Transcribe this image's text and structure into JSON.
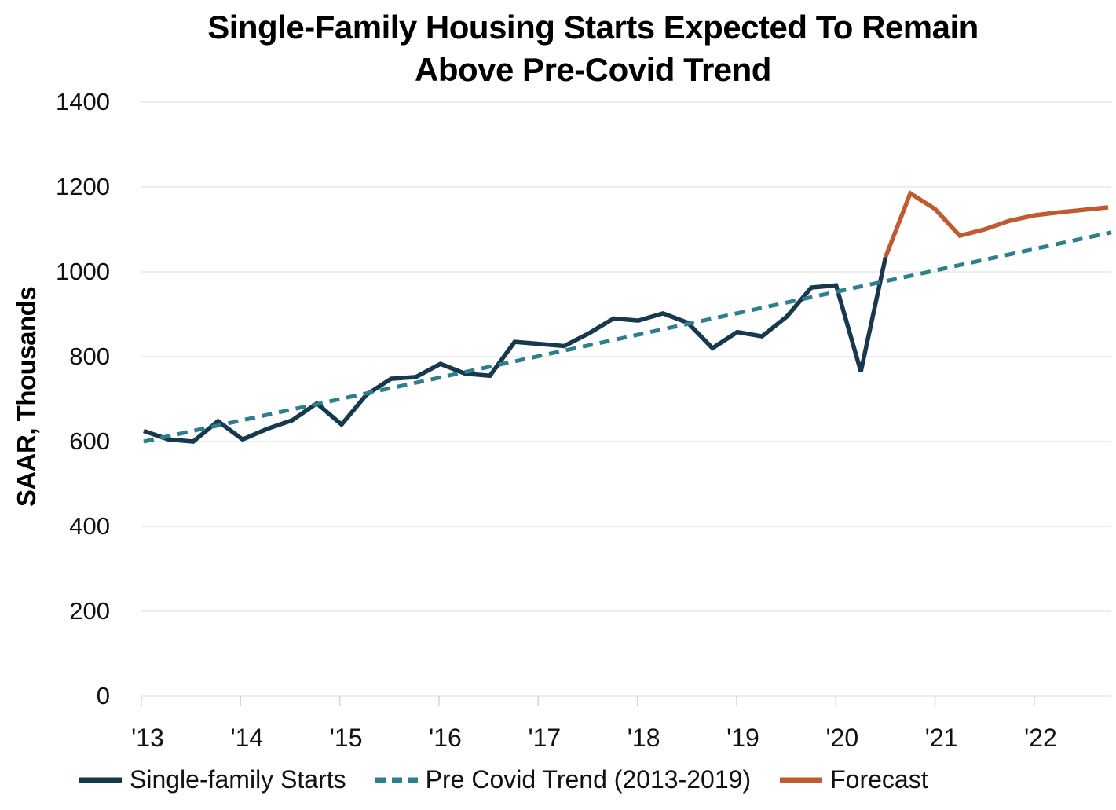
{
  "chart_data": {
    "type": "line",
    "title_line1": "Single-Family Housing Starts Expected To Remain",
    "title_line2": "Above Pre-Covid Trend",
    "ylabel": "SAAR, Thousands",
    "ylim": [
      0,
      1400
    ],
    "yticks": [
      1400,
      1200,
      1000,
      800,
      600,
      400,
      200,
      0
    ],
    "x_year_labels": [
      "'13",
      "'14",
      "'15",
      "'16",
      "'17",
      "'18",
      "'19",
      "'20",
      "'21",
      "'22"
    ],
    "x_start_year": 2013,
    "frequency": "quarterly",
    "grid": "horizontal",
    "legend_position": "bottom",
    "background_color": "#ffffff",
    "gridline_color": "#e7e7e7",
    "tick_color": "#d5d5d5",
    "series": [
      {
        "name": "Single-family Starts",
        "color": "#17394E",
        "style": "solid",
        "start": "2013Q1",
        "values": [
          625,
          605,
          600,
          648,
          605,
          630,
          650,
          690,
          640,
          710,
          748,
          752,
          783,
          760,
          755,
          835,
          830,
          825,
          855,
          890,
          885,
          902,
          880,
          820,
          858,
          848,
          894,
          963,
          968,
          765,
          1035
        ]
      },
      {
        "name": "Pre Covid Trend (2013-2019)",
        "color": "#2E7F8E",
        "style": "dashed",
        "start": "2013Q1",
        "end": "2022Q4",
        "trend_values": [
          600,
          1093
        ]
      },
      {
        "name": "Forecast",
        "color": "#C05B31",
        "style": "solid",
        "start": "2020Q3",
        "values": [
          1035,
          1185,
          1148,
          1085,
          1100,
          1120,
          1133,
          1140,
          1146,
          1152
        ]
      }
    ]
  }
}
